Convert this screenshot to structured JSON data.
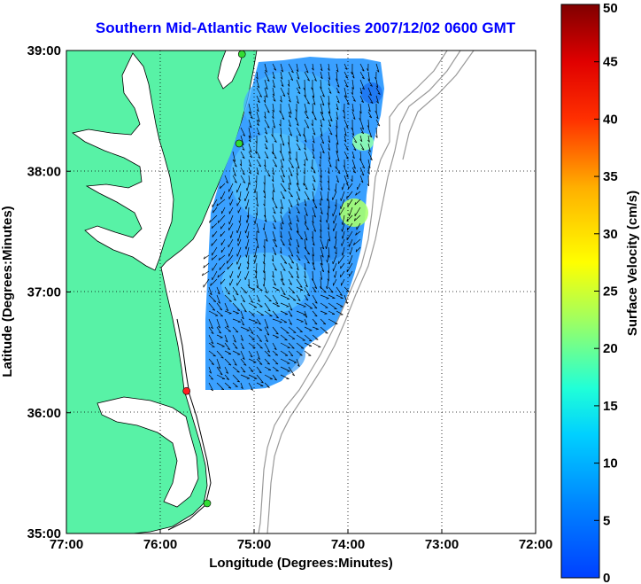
{
  "title": "Southern Mid-Atlantic Raw Velocities 2007/12/02 0600 GMT",
  "x_axis": {
    "label": "Longitude (Degrees:Minutes)",
    "ticks": [
      "77:00",
      "76:00",
      "75:00",
      "74:00",
      "73:00",
      "72:00"
    ]
  },
  "y_axis": {
    "label": "Latitude (Degrees:Minutes)",
    "ticks": [
      "39:00",
      "38:00",
      "37:00",
      "36:00",
      "35:00"
    ]
  },
  "colorbar": {
    "label": "Surface Velocity (cm/s)",
    "ticks": [
      "50",
      "45",
      "40",
      "35",
      "30",
      "25",
      "20",
      "15",
      "10",
      "5",
      "0"
    ],
    "min": 0,
    "max": 50,
    "colors": [
      "#0000ff",
      "#00ffff",
      "#ffff00",
      "#ff0000",
      "#800000"
    ]
  },
  "colors": {
    "land": "#58f2a6",
    "title": "#0000ff",
    "stations": "#33dd33",
    "highlight_station": "#ff2020",
    "bathymetry": "#999999",
    "vectors": "#000000"
  },
  "chart_data": {
    "type": "heatmap",
    "title": "Southern Mid-Atlantic Raw Velocities 2007/12/02 0600 GMT",
    "xlabel": "Longitude (Degrees:Minutes)",
    "ylabel": "Latitude (Degrees:Minutes)",
    "xlim": [
      -77.0,
      -72.0
    ],
    "ylim": [
      35.0,
      39.0
    ],
    "grid": true,
    "colorbar_range": [
      0,
      50
    ],
    "stations": [
      {
        "lon": -75.13,
        "lat": 38.97,
        "color": "green"
      },
      {
        "lon": -75.16,
        "lat": 38.23,
        "color": "green"
      },
      {
        "lon": -75.72,
        "lat": 36.18,
        "color": "red"
      },
      {
        "lon": -75.5,
        "lat": 35.25,
        "color": "green"
      }
    ]
  }
}
